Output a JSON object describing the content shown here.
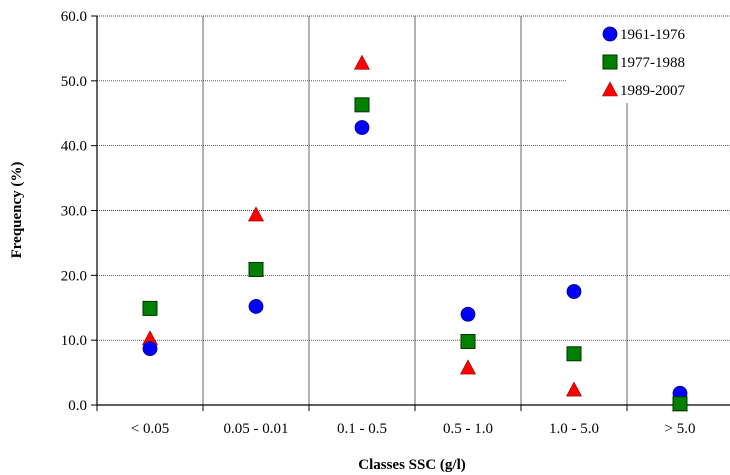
{
  "chart_data": {
    "type": "scatter",
    "title": "",
    "xlabel": "Classes SSC (g/l)",
    "ylabel": "Frequency (%)",
    "ylim": [
      0,
      60
    ],
    "y_ticks": [
      "0.0",
      "10.0",
      "20.0",
      "30.0",
      "40.0",
      "50.0",
      "60.0"
    ],
    "categories": [
      "< 0.05",
      "0.05 - 0.01",
      "0.1 - 0.5",
      "0.5 - 1.0",
      "1.0 - 5.0",
      "> 5.0"
    ],
    "grid": true,
    "legend_position": "top-right",
    "series": [
      {
        "name": "1961-1976",
        "marker": "circle",
        "color": "#0000ff",
        "values": [
          8.7,
          15.2,
          42.8,
          14.0,
          17.5,
          1.8
        ]
      },
      {
        "name": "1977-1988",
        "marker": "square",
        "color": "#008000",
        "values": [
          14.9,
          20.9,
          46.3,
          9.8,
          7.9,
          0.2
        ]
      },
      {
        "name": "1989-2007",
        "marker": "triangle",
        "color": "#ff0000",
        "values": [
          10.2,
          29.3,
          52.7,
          5.7,
          2.3,
          0.0
        ]
      }
    ]
  }
}
